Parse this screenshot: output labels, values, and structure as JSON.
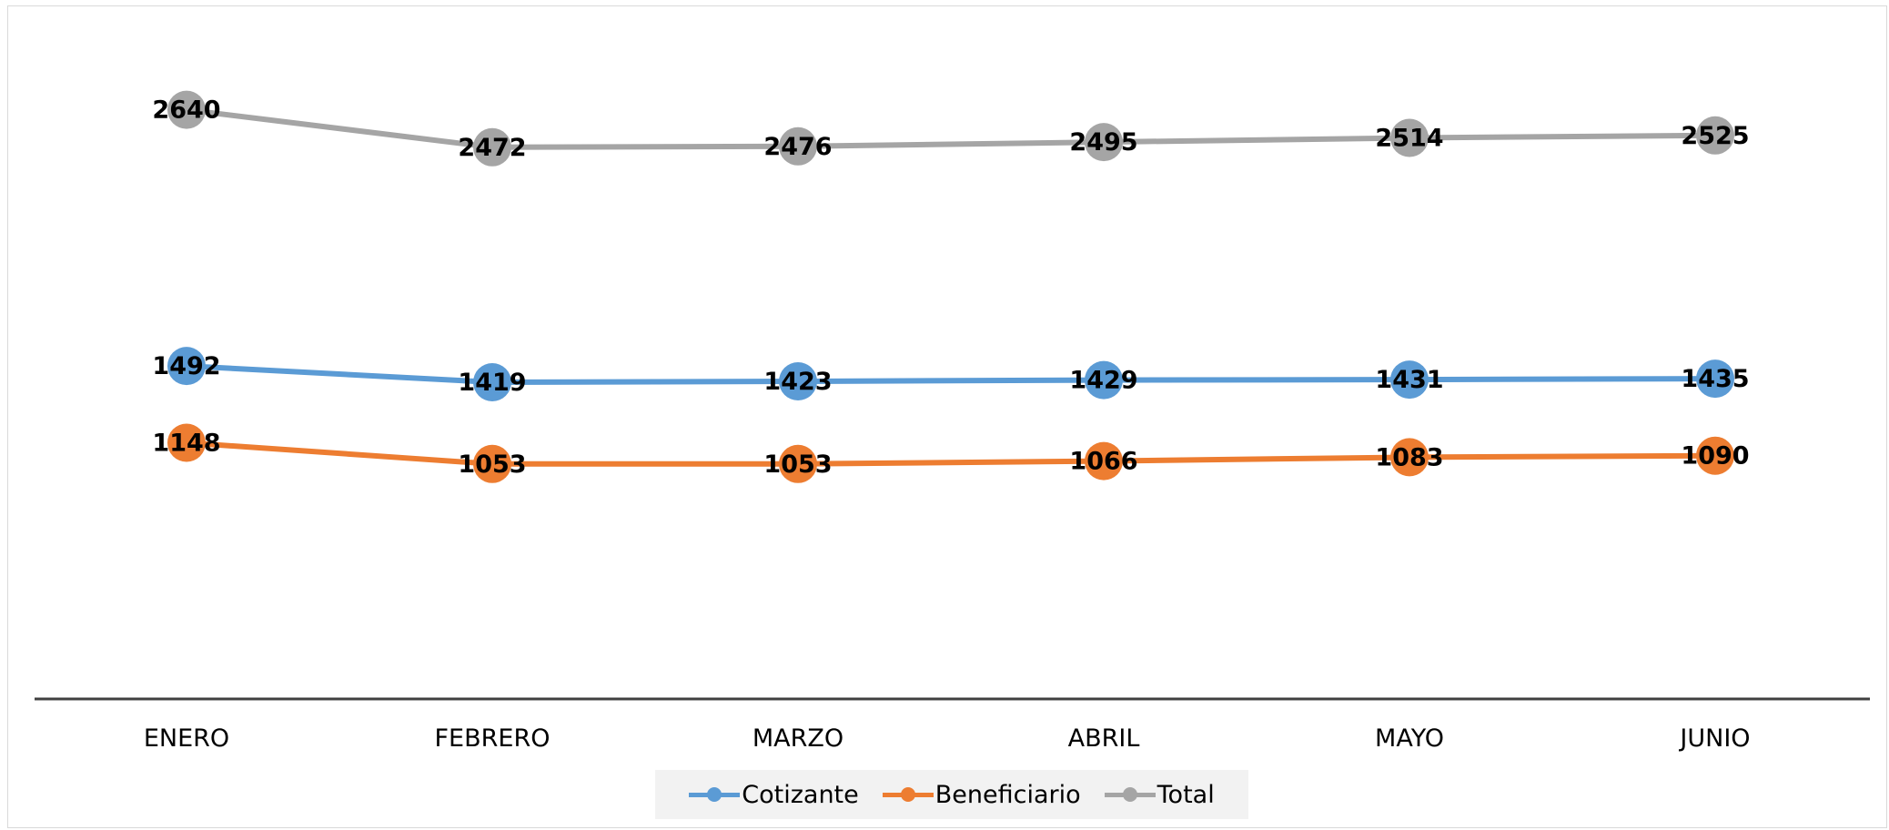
{
  "chart_data": {
    "type": "line",
    "categories": [
      "ENERO",
      "FEBRERO",
      "MARZO",
      "ABRIL",
      "MAYO",
      "JUNIO"
    ],
    "series": [
      {
        "name": "Cotizante",
        "color": "#5b9bd5",
        "values": [
          1492,
          1419,
          1423,
          1429,
          1431,
          1435
        ]
      },
      {
        "name": "Beneficiario",
        "color": "#ed7d31",
        "values": [
          1148,
          1053,
          1053,
          1066,
          1083,
          1090
        ]
      },
      {
        "name": "Total",
        "color": "#a5a5a5",
        "values": [
          2640,
          2472,
          2476,
          2495,
          2514,
          2525
        ]
      }
    ],
    "title": "",
    "xlabel": "",
    "ylabel": "",
    "ylim": [
      0,
      3000
    ],
    "grid": false,
    "y_axis_visible": false,
    "data_labels": true,
    "legend_position": "bottom"
  }
}
